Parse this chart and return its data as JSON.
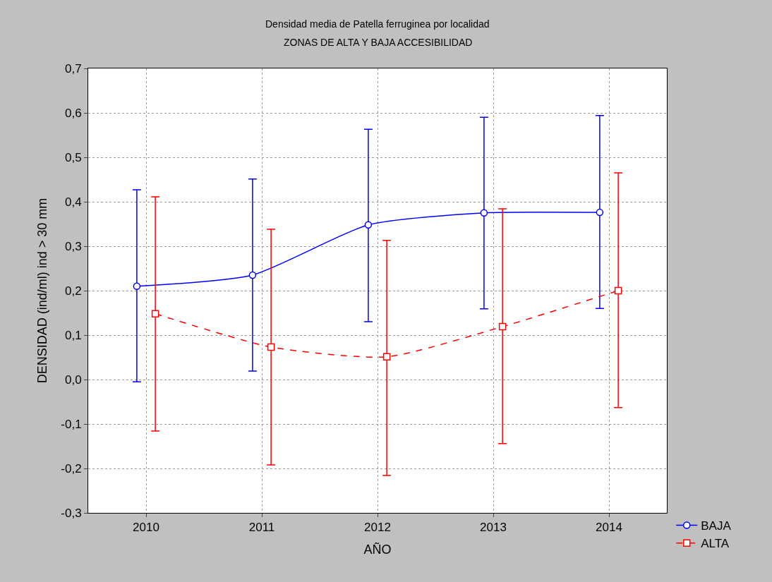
{
  "chart_data": {
    "type": "line",
    "title": "Densidad media de Patella ferruginea por localidad",
    "subtitle": "ZONAS DE ALTA Y BAJA ACCESIBILIDAD",
    "xlabel": "AÑO",
    "ylabel": "DENSIDAD (ind/ml) ind > 30 mm",
    "categories": [
      "2010",
      "2011",
      "2012",
      "2013",
      "2014"
    ],
    "series": [
      {
        "name": "BAJA",
        "color": "#0000ff",
        "marker": "circle",
        "line_style": "solid",
        "values": [
          0.21,
          0.235,
          0.348,
          0.375,
          0.376
        ],
        "errors": [
          [
            -0.005,
            0.427
          ],
          [
            0.019,
            0.451
          ],
          [
            0.13,
            0.563
          ],
          [
            0.159,
            0.59
          ],
          [
            0.16,
            0.594
          ]
        ]
      },
      {
        "name": "ALTA",
        "color": "#ff0000",
        "marker": "square",
        "line_style": "dashed",
        "values": [
          0.148,
          0.073,
          0.051,
          0.119,
          0.2
        ],
        "errors": [
          [
            -0.116,
            0.411
          ],
          [
            -0.192,
            0.338
          ],
          [
            -0.216,
            0.313
          ],
          [
            -0.144,
            0.384
          ],
          [
            -0.063,
            0.465
          ]
        ]
      }
    ],
    "ylim": [
      -0.3,
      0.7
    ],
    "yticks": [
      {
        "value": -0.3,
        "label": "-0,3"
      },
      {
        "value": -0.2,
        "label": "-0,2"
      },
      {
        "value": -0.1,
        "label": "-0,1"
      },
      {
        "value": 0,
        "label": "0,0"
      },
      {
        "value": 0.1,
        "label": "0,1"
      },
      {
        "value": 0.2,
        "label": "0,2"
      },
      {
        "value": 0.3,
        "label": "0,3"
      },
      {
        "value": 0.4,
        "label": "0,4"
      },
      {
        "value": 0.5,
        "label": "0,5"
      },
      {
        "value": 0.6,
        "label": "0,6"
      },
      {
        "value": 0.7,
        "label": "0,7"
      }
    ],
    "grid": true,
    "legend": "bottom right"
  }
}
